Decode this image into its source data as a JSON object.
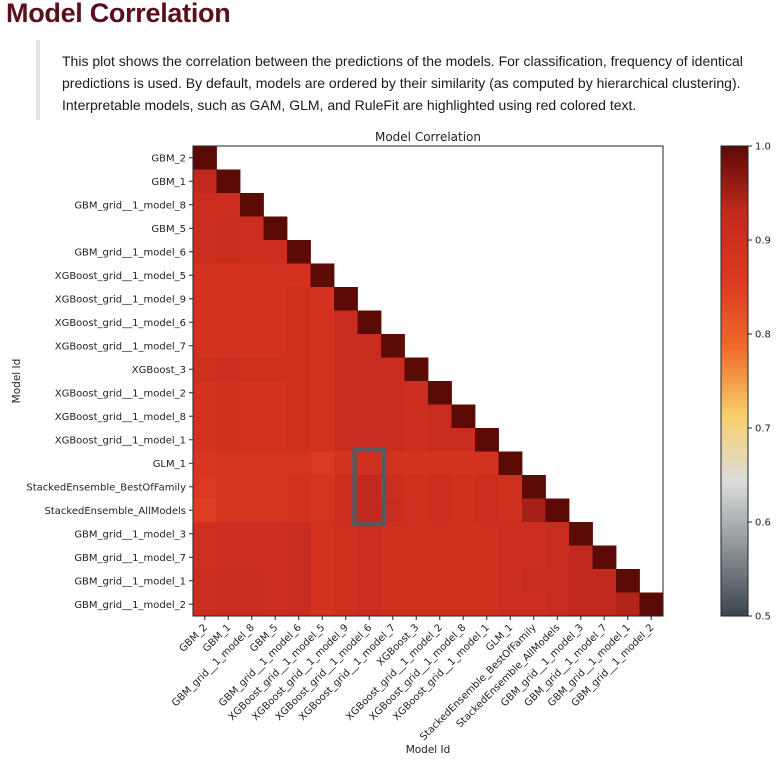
{
  "page": {
    "title": "Model Correlation",
    "description": "This plot shows the correlation between the predictions of the models. For classification, frequency of identical predictions is used. By default, models are ordered by their similarity (as computed by hierarchical clustering). Interpretable models, such as GAM, GLM, and RuleFit are highlighted using red colored text."
  },
  "colors": {
    "title": "#5a0f1e",
    "interpretable_label": "#d64000",
    "highlight_box": "#555a5e",
    "colormap_stops": [
      "#3a464c",
      "#8c9397",
      "#dcdcdc",
      "#f9cf6a",
      "#ef6a2a",
      "#dd3820",
      "#c42a1e",
      "#5c0a06"
    ]
  },
  "chart_data": {
    "type": "heatmap",
    "title": "Model Correlation",
    "xlabel": "Model Id",
    "ylabel": "Model Id",
    "labels": [
      "GBM_2",
      "GBM_1",
      "GBM_grid__1_model_8",
      "GBM_5",
      "GBM_grid__1_model_6",
      "XGBoost_grid__1_model_5",
      "XGBoost_grid__1_model_9",
      "XGBoost_grid__1_model_6",
      "XGBoost_grid__1_model_7",
      "XGBoost_3",
      "XGBoost_grid__1_model_2",
      "XGBoost_grid__1_model_8",
      "XGBoost_grid__1_model_1",
      "GLM_1",
      "StackedEnsemble_BestOfFamily",
      "StackedEnsemble_AllModels",
      "GBM_grid__1_model_3",
      "GBM_grid__1_model_7",
      "GBM_grid__1_model_1",
      "GBM_grid__1_model_2"
    ],
    "highlighted_labels": [
      "GLM_1"
    ],
    "colorbar": {
      "min": 0.5,
      "max": 1.0,
      "ticks": [
        "0.5",
        "0.6",
        "0.7",
        "0.8",
        "0.9",
        "1.0"
      ]
    },
    "matrix": [
      [
        1.0
      ],
      [
        0.93,
        1.0
      ],
      [
        0.91,
        0.91,
        1.0
      ],
      [
        0.91,
        0.92,
        0.91,
        1.0
      ],
      [
        0.91,
        0.92,
        0.91,
        0.91,
        1.0
      ],
      [
        0.89,
        0.89,
        0.89,
        0.89,
        0.89,
        1.0
      ],
      [
        0.89,
        0.89,
        0.89,
        0.89,
        0.9,
        0.89,
        1.0
      ],
      [
        0.89,
        0.89,
        0.89,
        0.89,
        0.9,
        0.89,
        0.92,
        1.0
      ],
      [
        0.89,
        0.89,
        0.89,
        0.89,
        0.9,
        0.89,
        0.92,
        0.92,
        1.0
      ],
      [
        0.9,
        0.91,
        0.9,
        0.9,
        0.9,
        0.89,
        0.92,
        0.92,
        0.92,
        1.0
      ],
      [
        0.89,
        0.9,
        0.89,
        0.89,
        0.9,
        0.89,
        0.92,
        0.92,
        0.92,
        0.91,
        1.0
      ],
      [
        0.89,
        0.9,
        0.89,
        0.89,
        0.9,
        0.89,
        0.92,
        0.92,
        0.92,
        0.91,
        0.92,
        1.0
      ],
      [
        0.89,
        0.9,
        0.89,
        0.89,
        0.9,
        0.89,
        0.92,
        0.92,
        0.92,
        0.91,
        0.92,
        0.92,
        1.0
      ],
      [
        0.87,
        0.88,
        0.88,
        0.88,
        0.88,
        0.86,
        0.89,
        0.9,
        0.89,
        0.89,
        0.89,
        0.89,
        0.89,
        1.0
      ],
      [
        0.86,
        0.88,
        0.88,
        0.88,
        0.89,
        0.88,
        0.91,
        0.93,
        0.91,
        0.9,
        0.91,
        0.9,
        0.91,
        0.9,
        1.0
      ],
      [
        0.85,
        0.88,
        0.88,
        0.88,
        0.89,
        0.88,
        0.91,
        0.93,
        0.92,
        0.9,
        0.91,
        0.9,
        0.91,
        0.9,
        0.95,
        1.0
      ],
      [
        0.9,
        0.91,
        0.91,
        0.91,
        0.92,
        0.89,
        0.9,
        0.91,
        0.9,
        0.9,
        0.9,
        0.9,
        0.9,
        0.91,
        0.91,
        0.92,
        1.0
      ],
      [
        0.9,
        0.91,
        0.91,
        0.91,
        0.92,
        0.89,
        0.9,
        0.91,
        0.9,
        0.9,
        0.9,
        0.9,
        0.9,
        0.91,
        0.91,
        0.92,
        0.93,
        1.0
      ],
      [
        0.91,
        0.92,
        0.92,
        0.91,
        0.92,
        0.89,
        0.9,
        0.91,
        0.9,
        0.9,
        0.9,
        0.9,
        0.9,
        0.91,
        0.92,
        0.92,
        0.93,
        0.93,
        1.0
      ],
      [
        0.91,
        0.92,
        0.92,
        0.91,
        0.92,
        0.89,
        0.9,
        0.91,
        0.9,
        0.9,
        0.9,
        0.9,
        0.9,
        0.91,
        0.91,
        0.92,
        0.93,
        0.93,
        0.94,
        1.0
      ]
    ],
    "highlight_box": {
      "column": "XGBoost_grid__1_model_6",
      "rows": [
        "GLM_1",
        "StackedEnsemble_BestOfFamily",
        "StackedEnsemble_AllModels"
      ]
    }
  }
}
